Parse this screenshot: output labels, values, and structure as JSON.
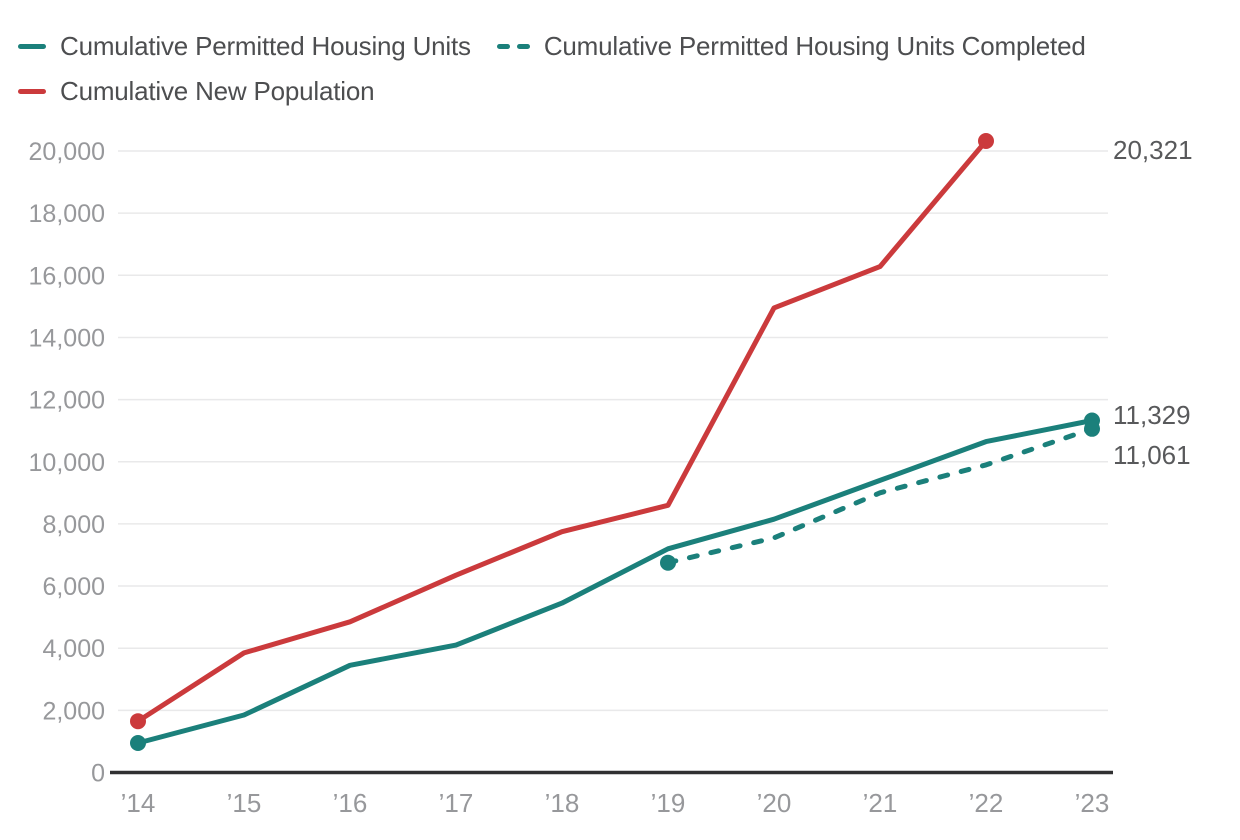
{
  "legend": {
    "items": [
      {
        "label": "Cumulative Permitted Housing Units",
        "color": "#1B807B",
        "style": "solid"
      },
      {
        "label": "Cumulative Permitted Housing Units Completed",
        "color": "#1B807B",
        "style": "dashed"
      },
      {
        "label": "Cumulative New Population",
        "color": "#CB3A3C",
        "style": "solid"
      }
    ]
  },
  "chart_data": {
    "type": "line",
    "title": "",
    "xlabel": "",
    "ylabel": "",
    "grid": true,
    "legend_position": "top-left",
    "x_categories": [
      "’14",
      "’15",
      "’16",
      "’17",
      "’18",
      "’19",
      "’20",
      "’21",
      "’22",
      "’23"
    ],
    "ylim": [
      0,
      20000
    ],
    "ytick_step": 2000,
    "ytick_labels": [
      "0",
      "2,000",
      "4,000",
      "6,000",
      "8,000",
      "10,000",
      "12,000",
      "14,000",
      "16,000",
      "18,000",
      "20,000"
    ],
    "series": [
      {
        "name": "Cumulative Permitted Housing Units",
        "slug": "permitted-housing-units",
        "color": "#1B807B",
        "dash": false,
        "start_index": 0,
        "values": [
          950,
          1850,
          3450,
          4100,
          5450,
          7200,
          8150,
          9400,
          10650,
          11329
        ]
      },
      {
        "name": "Cumulative Permitted Housing Units Completed",
        "slug": "permitted-housing-units-completed",
        "color": "#1B807B",
        "dash": true,
        "start_index": 5,
        "values": [
          6750,
          7550,
          9000,
          9900,
          11061
        ]
      },
      {
        "name": "Cumulative New Population",
        "slug": "new-population",
        "color": "#CB3A3C",
        "dash": false,
        "start_index": 0,
        "values": [
          1650,
          3850,
          4850,
          6350,
          7750,
          8600,
          14950,
          16280,
          20321
        ]
      }
    ],
    "annotations": [
      {
        "text": "20,321",
        "series": "Cumulative New Population",
        "x": "’22"
      },
      {
        "text": "11,329",
        "series": "Cumulative Permitted Housing Units",
        "x": "’23"
      },
      {
        "text": "11,061",
        "series": "Cumulative Permitted Housing Units Completed",
        "x": "’23"
      }
    ]
  },
  "colors": {
    "teal": "#1B807B",
    "red": "#CB3A3C",
    "gridline": "#E9E9EA",
    "axis_line": "#303032",
    "tick_label": "#97989B",
    "annotation_text": "#58595B",
    "legend_text": "#4D4E50"
  }
}
